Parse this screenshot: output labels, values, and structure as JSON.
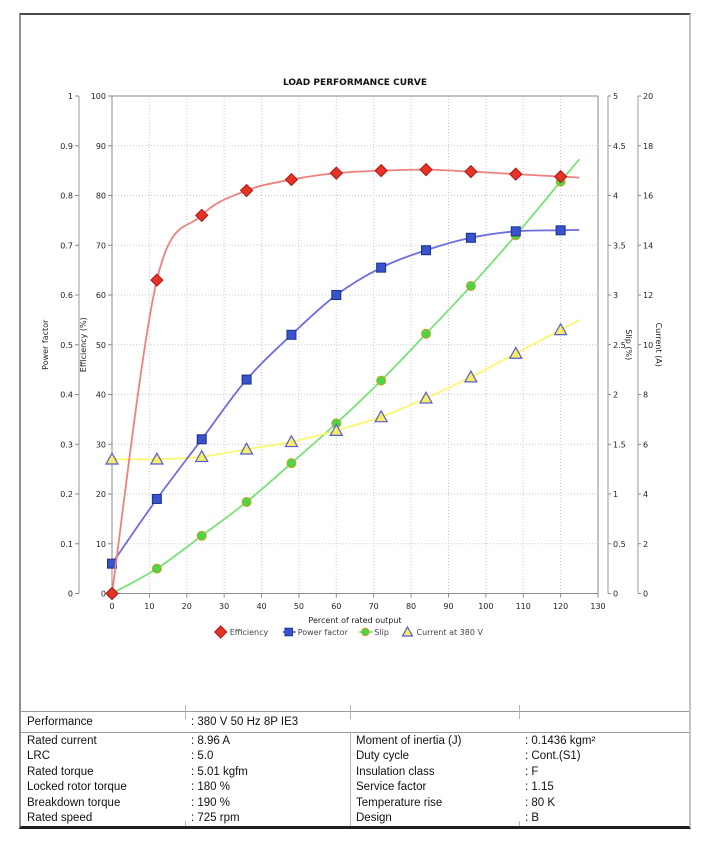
{
  "chart_data": {
    "type": "line",
    "title": "LOAD PERFORMANCE CURVE",
    "xlabel": "Percent of rated output",
    "xlim": [
      0,
      130
    ],
    "x_tick_step": 10,
    "grid": "dotted",
    "legend_position": "bottom-center",
    "axes": [
      {
        "id": "power_factor",
        "label": "Power factor",
        "side": "left",
        "min": 0,
        "max": 1,
        "step": 0.1
      },
      {
        "id": "efficiency",
        "label": "Efficiency (%)",
        "side": "left",
        "min": 0,
        "max": 100,
        "step": 10
      },
      {
        "id": "slip",
        "label": "Slip (%)",
        "side": "right",
        "min": 0,
        "max": 5,
        "step": 0.5
      },
      {
        "id": "current",
        "label": "Current (A)",
        "side": "right",
        "min": 0,
        "max": 20,
        "step": 2
      }
    ],
    "x": [
      0,
      12,
      24,
      36,
      48,
      60,
      72,
      84,
      96,
      108,
      120
    ],
    "series": [
      {
        "name": "Slip",
        "axis": "slip",
        "marker": "circle",
        "line_color": "#77e377",
        "marker_fill": "#4ad647",
        "marker_edge": "#c9a227",
        "values": [
          0,
          0.25,
          0.58,
          0.92,
          1.31,
          1.71,
          2.14,
          2.61,
          3.09,
          3.6,
          4.14
        ]
      },
      {
        "name": "Current at 380 V",
        "axis": "current",
        "marker": "triangle",
        "line_color": "#fbf76e",
        "marker_fill": "#f5ee67",
        "marker_edge": "#5a5ad2",
        "values": [
          5.4,
          5.4,
          5.5,
          5.8,
          6.1,
          6.55,
          7.1,
          7.85,
          8.7,
          9.65,
          10.6
        ]
      },
      {
        "name": "Power factor",
        "axis": "power_factor",
        "marker": "square",
        "line_color": "#6e6ee0",
        "marker_fill": "#3753cd",
        "marker_edge": "#1d2f8a",
        "values": [
          0.06,
          0.19,
          0.31,
          0.43,
          0.52,
          0.6,
          0.655,
          0.69,
          0.715,
          0.728,
          0.73
        ]
      },
      {
        "name": "Efficiency",
        "axis": "efficiency",
        "marker": "diamond",
        "line_color": "#f0807d",
        "marker_fill": "#e63329",
        "marker_edge": "#b01510",
        "values": [
          0,
          63,
          76,
          81,
          83.2,
          84.5,
          85,
          85.2,
          84.8,
          84.3,
          83.8
        ]
      }
    ],
    "legend_order": [
      "Efficiency",
      "Power factor",
      "Slip",
      "Current at 380 V"
    ],
    "line_extend_to_x": 125
  },
  "table": {
    "performance_label": "Performance",
    "performance_value": ": 380 V 50 Hz 8P IE3",
    "left_rows": [
      {
        "label": "Rated current",
        "value": ": 8.96 A"
      },
      {
        "label": "LRC",
        "value": ": 5.0"
      },
      {
        "label": "Rated torque",
        "value": ": 5.01 kgfm"
      },
      {
        "label": "Locked rotor torque",
        "value": ": 180 %"
      },
      {
        "label": "Breakdown torque",
        "value": ": 190 %"
      },
      {
        "label": "Rated speed",
        "value": ": 725 rpm"
      }
    ],
    "right_rows": [
      {
        "label": "Moment of inertia (J)",
        "value": ": 0.1436 kgm²"
      },
      {
        "label": "Duty cycle",
        "value": ": Cont.(S1)"
      },
      {
        "label": "Insulation class",
        "value": ": F"
      },
      {
        "label": "Service factor",
        "value": ": 1.15"
      },
      {
        "label": "Temperature rise",
        "value": ": 80 K"
      },
      {
        "label": "Design",
        "value": ": B"
      }
    ]
  },
  "colors": {
    "plot_border": "#8a8a8a",
    "gridline": "#c9c9c9",
    "tick_text": "#222222",
    "legend_text": "#444444"
  }
}
